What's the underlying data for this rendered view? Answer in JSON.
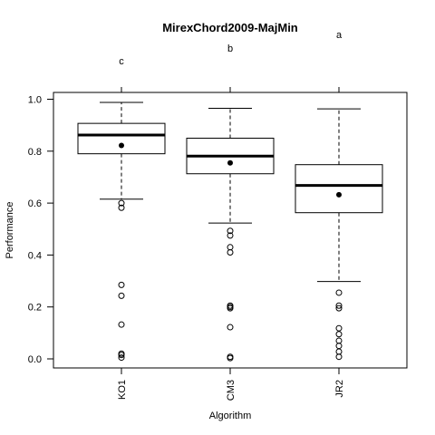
{
  "chart_data": {
    "type": "boxplot",
    "title": "MirexChord2009-MajMin",
    "xlabel": "Algorithm",
    "ylabel": "Performance",
    "ylim": [
      0.0,
      1.0
    ],
    "yticks": [
      0.0,
      0.2,
      0.4,
      0.6,
      0.8,
      1.0
    ],
    "ytick_labels": [
      "0.0",
      "0.2",
      "0.4",
      "0.6",
      "0.8",
      "1.0"
    ],
    "categories": [
      "KO1",
      "CM3",
      "JR2"
    ],
    "group_letters": [
      "c",
      "b",
      "a"
    ],
    "boxes": [
      {
        "name": "KO1",
        "whisker_low": 0.615,
        "q1": 0.79,
        "median": 0.862,
        "q3": 0.907,
        "whisker_high": 0.988,
        "mean": 0.822,
        "outliers": [
          0.6,
          0.582,
          0.285,
          0.243,
          0.132,
          0.02,
          0.015,
          0.005
        ]
      },
      {
        "name": "CM3",
        "whisker_low": 0.523,
        "q1": 0.713,
        "median": 0.781,
        "q3": 0.85,
        "whisker_high": 0.965,
        "mean": 0.755,
        "outliers": [
          0.493,
          0.475,
          0.43,
          0.41,
          0.205,
          0.2,
          0.195,
          0.122,
          0.008,
          0.003
        ]
      },
      {
        "name": "JR2",
        "whisker_low": 0.298,
        "q1": 0.563,
        "median": 0.668,
        "q3": 0.748,
        "whisker_high": 0.963,
        "mean": 0.632,
        "outliers": [
          0.255,
          0.205,
          0.195,
          0.118,
          0.095,
          0.07,
          0.05,
          0.028,
          0.008
        ]
      }
    ],
    "grid": false,
    "legend": "none"
  }
}
